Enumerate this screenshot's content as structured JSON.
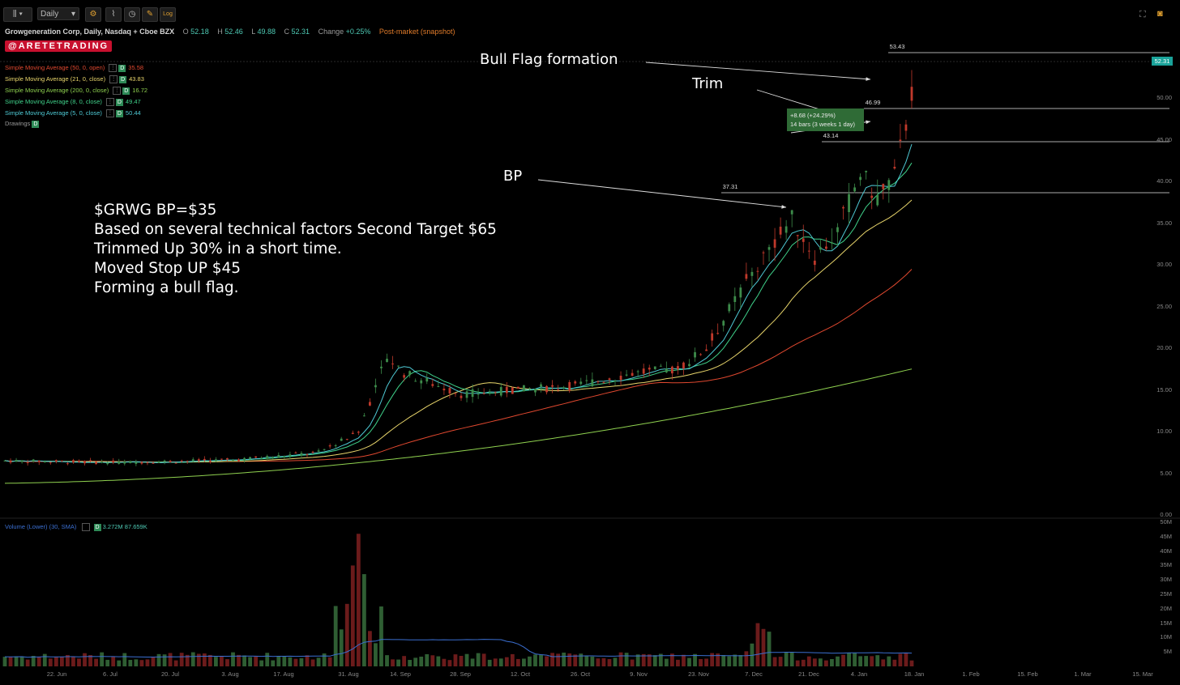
{
  "toolbar": {
    "chart_type_icon": "candlestick-icon",
    "timeframe": "Daily",
    "buttons": [
      "gear-icon",
      "indicator-icon",
      "clock-icon",
      "drawing-icon",
      "log-scale-icon"
    ],
    "log_label": "Log",
    "right_icons": [
      "fullscreen-icon",
      "camera-icon"
    ]
  },
  "symbol": {
    "title": "Growgeneration Corp, Daily, Nasdaq + Cboe BZX",
    "o_label": "O",
    "o": "52.18",
    "h_label": "H",
    "h": "52.46",
    "l_label": "L",
    "l": "49.88",
    "c_label": "C",
    "c": "52.31",
    "change_label": "Change",
    "change": "+0.25%",
    "post_market": "Post-market (snapshot)"
  },
  "brand": "@ARETETRADING",
  "indicators": [
    {
      "label": "Simple Moving Average (50, 0, open)",
      "value": "35.58",
      "color": "#e0482f"
    },
    {
      "label": "Simple Moving Average (21, 0, close)",
      "value": "43.83",
      "color": "#e8d56b"
    },
    {
      "label": "Simple Moving Average (200, 0, close)",
      "value": "16.72",
      "color": "#8fd14f"
    },
    {
      "label": "Simple Moving Average (8, 0, close)",
      "value": "49.47",
      "color": "#3fd18a"
    },
    {
      "label": "Simple Moving Average (5, 0, close)",
      "value": "50.44",
      "color": "#4ec9d4"
    }
  ],
  "drawings_label": "Drawings",
  "d_badge": "D",
  "annotations": {
    "bull_flag": "Bull Flag formation",
    "trim": "Trim",
    "bp": "BP",
    "note_lines": [
      "$GRWG BP=$35",
      "Based on several technical factors Second Target $65",
      "Trimmed Up 30% in a short time.",
      "Moved Stop UP $45",
      "Forming a bull flag."
    ]
  },
  "measure": {
    "line1": "+8.68 (+24.29%)",
    "line2": "14 bars (3 weeks 1 day)"
  },
  "peaks": [
    {
      "label": "53.43",
      "price": 53.43
    },
    {
      "label": "46.99",
      "price": 46.99
    },
    {
      "label": "43.14",
      "price": 43.14
    },
    {
      "label": "37.31",
      "price": 37.31
    }
  ],
  "last_price": "52.31",
  "volume": {
    "label": "Volume (Lower) (30, SMA)",
    "v1": "3.272M",
    "v2": "87.659K"
  },
  "chart_data": {
    "type": "candlestick",
    "price_axis_ticks": [
      "50.00",
      "45.00",
      "40.00",
      "35.00",
      "30.00",
      "25.00",
      "20.00",
      "15.00",
      "10.00",
      "5.00",
      "0.00"
    ],
    "volume_axis_ticks": [
      "50M",
      "45M",
      "40M",
      "35M",
      "30M",
      "25M",
      "20M",
      "15M",
      "10M",
      "5M"
    ],
    "x_ticks": [
      "22. Jun",
      "6. Jul",
      "20. Jul",
      "3. Aug",
      "17. Aug",
      "31. Aug",
      "14. Sep",
      "28. Sep",
      "12. Oct",
      "26. Oct",
      "9. Nov",
      "23. Nov",
      "7. Dec",
      "21. Dec",
      "4. Jan",
      "18. Jan",
      "1. Feb",
      "15. Feb",
      "1. Mar",
      "15. Mar"
    ],
    "ylim": [
      0,
      55
    ],
    "horizontal_levels": [
      53.43,
      46.99,
      43.14,
      37.31
    ],
    "colors": {
      "up": "#3d8b4a",
      "down": "#c0392b",
      "bg": "#000000",
      "sma50": "#e0482f",
      "sma21": "#e8d56b",
      "sma200": "#8fd14f",
      "sma8": "#3fd18a",
      "sma5": "#4ec9d4",
      "vol_sma": "#3b6fd1"
    }
  }
}
